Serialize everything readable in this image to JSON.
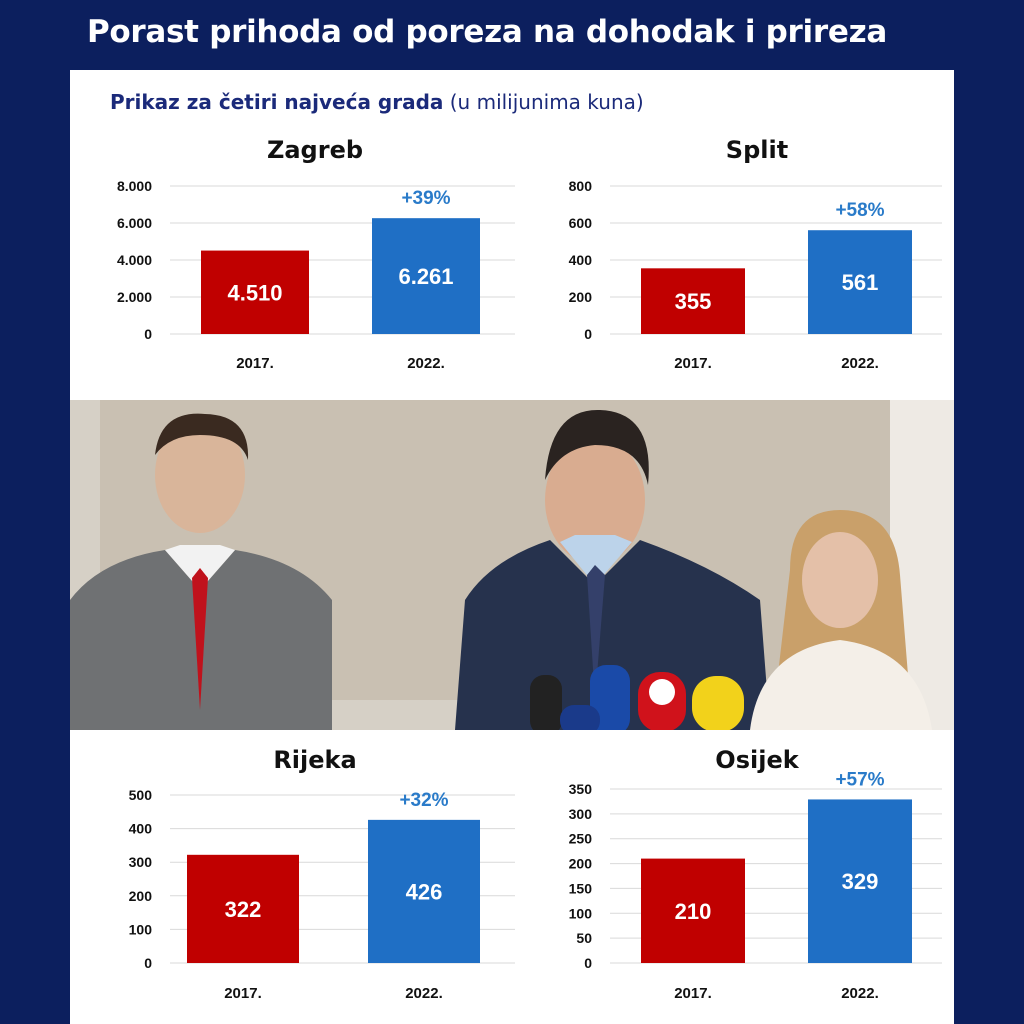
{
  "header": {
    "title": "Porast prihoda od poreza na dohodak i prireza"
  },
  "subtitle": {
    "bold": "Prikaz za četiri najveća grada",
    "normal": "(u milijunima kuna)"
  },
  "colors": {
    "bar_2017": "#c00000",
    "bar_2022": "#1f6fc5",
    "growth": "#2a7bc9",
    "background": "#0c1f5e"
  },
  "photo": {
    "description_icon": "press-conference-photo"
  },
  "chart_data": [
    {
      "type": "bar",
      "title": "Zagreb",
      "categories": [
        "2017.",
        "2022."
      ],
      "values": [
        4510,
        6261
      ],
      "value_labels": [
        "4.510",
        "6.261"
      ],
      "growth_label": "+39%",
      "ylim": [
        0,
        8000
      ],
      "yticks": [
        0,
        2000,
        4000,
        6000,
        8000
      ],
      "ytick_labels": [
        "0",
        "2.000",
        "4.000",
        "6.000",
        "8.000"
      ],
      "grid": true
    },
    {
      "type": "bar",
      "title": "Split",
      "categories": [
        "2017.",
        "2022."
      ],
      "values": [
        355,
        561
      ],
      "value_labels": [
        "355",
        "561"
      ],
      "growth_label": "+58%",
      "ylim": [
        0,
        800
      ],
      "yticks": [
        0,
        200,
        400,
        600,
        800
      ],
      "ytick_labels": [
        "0",
        "200",
        "400",
        "600",
        "800"
      ],
      "grid": true
    },
    {
      "type": "bar",
      "title": "Rijeka",
      "categories": [
        "2017.",
        "2022."
      ],
      "values": [
        322,
        426
      ],
      "value_labels": [
        "322",
        "426"
      ],
      "growth_label": "+32%",
      "ylim": [
        0,
        500
      ],
      "yticks": [
        0,
        100,
        200,
        300,
        400,
        500
      ],
      "ytick_labels": [
        "0",
        "100",
        "200",
        "300",
        "400",
        "500"
      ],
      "grid": true
    },
    {
      "type": "bar",
      "title": "Osijek",
      "categories": [
        "2017.",
        "2022."
      ],
      "values": [
        210,
        329
      ],
      "value_labels": [
        "210",
        "329"
      ],
      "growth_label": "+57%",
      "ylim": [
        0,
        350
      ],
      "yticks": [
        0,
        50,
        100,
        150,
        200,
        250,
        300,
        350
      ],
      "ytick_labels": [
        "0",
        "50",
        "100",
        "150",
        "200",
        "250",
        "300",
        "350"
      ],
      "grid": true
    }
  ]
}
